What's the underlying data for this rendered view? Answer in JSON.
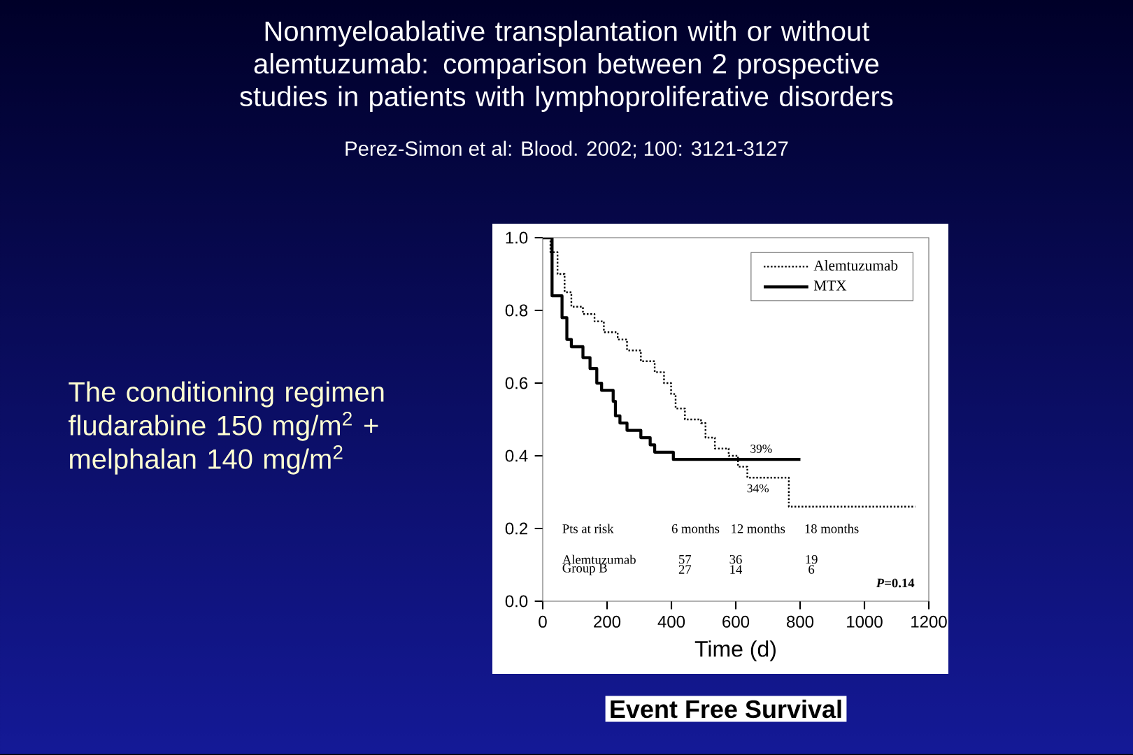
{
  "chart_data": {
    "type": "step",
    "title": "Nonmyeloablative transplantation with or without alemtuzumab: comparison between 2 prospective studies in patients with lymphoproliferative disorders",
    "subtitle": "Perez-Simon et al: Blood. 2002; 100: 3121-3127",
    "xlabel": "Time  (d)",
    "xlim": [
      0,
      1200
    ],
    "ylim": [
      0,
      1.0
    ],
    "xticks": [
      0,
      200,
      400,
      600,
      800,
      1000,
      1200
    ],
    "yticks": [
      {
        "value": 0,
        "label": "0.0"
      },
      {
        "value": 0.2,
        "label": "0.2"
      },
      {
        "value": 0.4,
        "label": "0.4"
      },
      {
        "value": 0.6,
        "label": "0.6"
      },
      {
        "value": 0.8,
        "label": "0.8"
      },
      {
        "value": 1.0,
        "label": "1.0"
      }
    ],
    "legend": "top right",
    "grid": false,
    "series": [
      {
        "name": "Alemtuzumab",
        "color": "#000000",
        "line_style": "dotted",
        "x": [
          0,
          24,
          46,
          68,
          89,
          125,
          161,
          190,
          233,
          262,
          305,
          348,
          377,
          399,
          413,
          442,
          492,
          506,
          535,
          578,
          607,
          636,
          765,
          1158
        ],
        "values": [
          1.0,
          0.96,
          0.9,
          0.85,
          0.81,
          0.79,
          0.77,
          0.74,
          0.72,
          0.69,
          0.66,
          0.63,
          0.6,
          0.57,
          0.53,
          0.5,
          0.49,
          0.45,
          0.42,
          0.4,
          0.37,
          0.34,
          0.26,
          0.26
        ]
      },
      {
        "name": "MTX",
        "color": "#000000",
        "line_style": "solid",
        "x": [
          0,
          29,
          60,
          75,
          89,
          125,
          147,
          168,
          183,
          219,
          226,
          240,
          262,
          305,
          334,
          348,
          406,
          801
        ],
        "values": [
          1.0,
          0.84,
          0.78,
          0.72,
          0.7,
          0.67,
          0.64,
          0.6,
          0.58,
          0.55,
          0.51,
          0.49,
          0.47,
          0.45,
          0.43,
          0.41,
          0.39,
          0.39
        ]
      }
    ],
    "annotations": [
      "The conditioning regimen fludarabine 150 mg/m$^{2}$ + melphalan 140 mg/m$^{2}$",
      "Event Free Survival",
      "Pts at risk",
      "6 months",
      "12 months",
      "18 months",
      "Alemtuzumab",
      "57",
      "36",
      "19",
      "Group B",
      "27",
      "14",
      "6",
      "*P*=0.14",
      {
        "text": "39%",
        "x": 679,
        "y": 0.39
      },
      {
        "text": "34%",
        "x": 669,
        "y": 0.34
      }
    ]
  }
}
